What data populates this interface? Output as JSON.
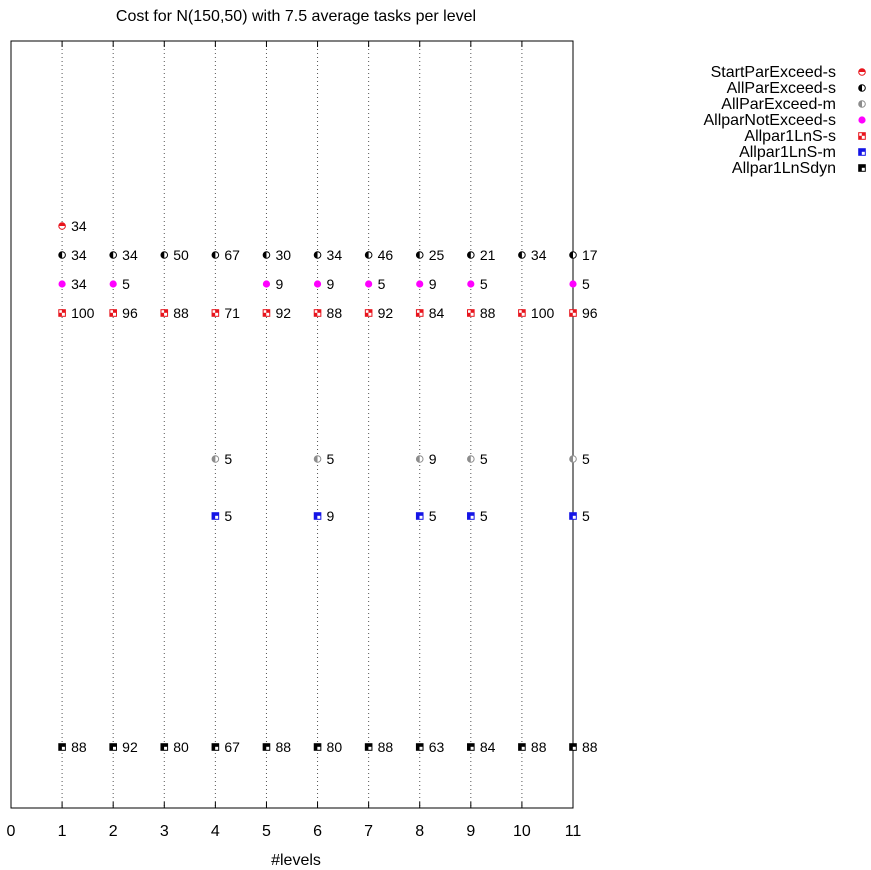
{
  "chart_data": {
    "type": "scatter",
    "title": "Cost for N(150,50) with 7.5 average tasks per level",
    "xlabel": "#levels",
    "ylabel": "",
    "xlim": [
      0,
      11
    ],
    "x_ticks": [
      "0",
      "1",
      "2",
      "3",
      "4",
      "5",
      "6",
      "7",
      "8",
      "9",
      "10",
      "11"
    ],
    "grid": "vertical dotted lines at x = 1..10",
    "y_axis": "no tick labels; each series plotted on its own row",
    "legend_position": "outside top-right",
    "series": [
      {
        "name": "StartParExceed-s",
        "marker": "half-filled-circle",
        "color": "#e8141c",
        "points": [
          {
            "x": 1,
            "label": "34"
          }
        ]
      },
      {
        "name": "AllParExceed-s",
        "marker": "half-filled-circle",
        "color": "#000000",
        "points": [
          {
            "x": 1,
            "label": "34"
          },
          {
            "x": 2,
            "label": "34"
          },
          {
            "x": 3,
            "label": "50"
          },
          {
            "x": 4,
            "label": "67"
          },
          {
            "x": 5,
            "label": "30"
          },
          {
            "x": 6,
            "label": "34"
          },
          {
            "x": 7,
            "label": "46"
          },
          {
            "x": 8,
            "label": "25"
          },
          {
            "x": 9,
            "label": "21"
          },
          {
            "x": 10,
            "label": "34"
          },
          {
            "x": 11,
            "label": "17"
          }
        ]
      },
      {
        "name": "AllParExceed-m",
        "marker": "half-filled-circle",
        "color": "#8c8c8c",
        "points": [
          {
            "x": 4,
            "label": "5"
          },
          {
            "x": 6,
            "label": "5"
          },
          {
            "x": 8,
            "label": "9"
          },
          {
            "x": 9,
            "label": "5"
          },
          {
            "x": 11,
            "label": "5"
          }
        ]
      },
      {
        "name": "AllparNotExceed-s",
        "marker": "filled-circle",
        "color": "#ff00ff",
        "points": [
          {
            "x": 1,
            "label": "34"
          },
          {
            "x": 2,
            "label": "5"
          },
          {
            "x": 5,
            "label": "9"
          },
          {
            "x": 6,
            "label": "9"
          },
          {
            "x": 7,
            "label": "5"
          },
          {
            "x": 8,
            "label": "9"
          },
          {
            "x": 9,
            "label": "5"
          },
          {
            "x": 11,
            "label": "5"
          }
        ]
      },
      {
        "name": "Allpar1LnS-s",
        "marker": "checker-square",
        "color": "#e8141c",
        "points": [
          {
            "x": 1,
            "label": "100"
          },
          {
            "x": 2,
            "label": "96"
          },
          {
            "x": 3,
            "label": "88"
          },
          {
            "x": 4,
            "label": "71"
          },
          {
            "x": 5,
            "label": "92"
          },
          {
            "x": 6,
            "label": "88"
          },
          {
            "x": 7,
            "label": "92"
          },
          {
            "x": 8,
            "label": "84"
          },
          {
            "x": 9,
            "label": "88"
          },
          {
            "x": 10,
            "label": "100"
          },
          {
            "x": 11,
            "label": "96"
          }
        ]
      },
      {
        "name": "Allpar1LnS-m",
        "marker": "checker-square",
        "color": "#1414e6",
        "points": [
          {
            "x": 4,
            "label": "5"
          },
          {
            "x": 6,
            "label": "9"
          },
          {
            "x": 8,
            "label": "5"
          },
          {
            "x": 9,
            "label": "5"
          },
          {
            "x": 11,
            "label": "5"
          }
        ]
      },
      {
        "name": "Allpar1LnSdyn",
        "marker": "checker-square",
        "color": "#000000",
        "points": [
          {
            "x": 1,
            "label": "88"
          },
          {
            "x": 2,
            "label": "92"
          },
          {
            "x": 3,
            "label": "80"
          },
          {
            "x": 4,
            "label": "67"
          },
          {
            "x": 5,
            "label": "88"
          },
          {
            "x": 6,
            "label": "80"
          },
          {
            "x": 7,
            "label": "88"
          },
          {
            "x": 8,
            "label": "63"
          },
          {
            "x": 9,
            "label": "84"
          },
          {
            "x": 10,
            "label": "88"
          },
          {
            "x": 11,
            "label": "88"
          }
        ]
      }
    ]
  }
}
